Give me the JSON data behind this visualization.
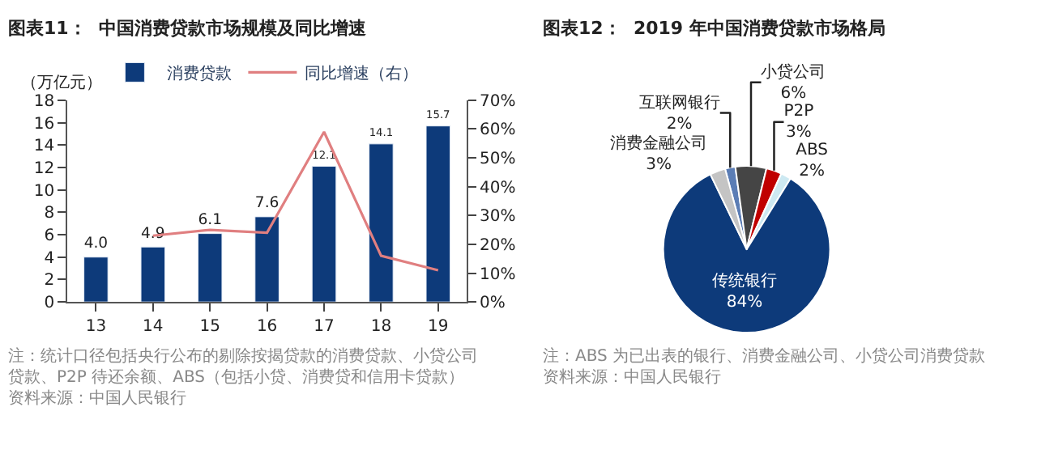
{
  "chart_data": [
    {
      "type": "bar",
      "title": "图表11：  中国消费贷款市场规模及同比增速",
      "ylabel": "（万亿元）",
      "categories": [
        "13",
        "14",
        "15",
        "16",
        "17",
        "18",
        "19"
      ],
      "series": [
        {
          "name": "消费贷款",
          "type": "bar",
          "color": "#0d3a7a",
          "values": [
            4.0,
            4.9,
            6.1,
            7.6,
            12.1,
            14.1,
            15.7
          ],
          "value_labels": [
            "4.0",
            "4.9",
            "6.1",
            "7.6",
            "12.1",
            "14.1",
            "15.7"
          ]
        },
        {
          "name": "同比增速（右）",
          "type": "line",
          "axis": "y2",
          "color": "#e07f80",
          "values": [
            null,
            23,
            25,
            24,
            59,
            16,
            11
          ]
        }
      ],
      "ylim": [
        0,
        18
      ],
      "yticks": [
        0,
        2,
        4,
        6,
        8,
        10,
        12,
        14,
        16,
        18
      ],
      "y2lim": [
        0,
        70
      ],
      "y2ticks": [
        {
          "value": 0,
          "label": "0%"
        },
        {
          "value": 10,
          "label": "10%"
        },
        {
          "value": 20,
          "label": "20%"
        },
        {
          "value": 30,
          "label": "30%"
        },
        {
          "value": 40,
          "label": "40%"
        },
        {
          "value": 50,
          "label": "50%"
        },
        {
          "value": 60,
          "label": "60%"
        },
        {
          "value": 70,
          "label": "70%"
        }
      ],
      "legend": "top",
      "marker": "none",
      "line_style": "solid",
      "annotations": [
        "注：统计口径包括央行公布的剔除按揭贷款的消费贷款、小贷公司贷款、P2P 待还余额、ABS（包括小贷、消费贷和信用卡贷款）",
        "资料来源：中国人民银行"
      ]
    },
    {
      "type": "pie",
      "title": "图表12：  2019 年中国消费贷款市场格局",
      "categories": [
        "互联网银行",
        "小贷公司",
        "P2P",
        "ABS",
        "传统银行",
        "消费金融公司"
      ],
      "values": [
        2,
        6,
        3,
        2,
        84,
        3
      ],
      "value_labels": [
        "2%",
        "6%",
        "3%",
        "2%",
        "84%",
        "3%"
      ],
      "colors": [
        "#5b7db5",
        "#454545",
        "#c00000",
        "#cde9f2",
        "#0d3a7a",
        "#c4c4c4"
      ],
      "legend": false,
      "annotations": [
        "注：ABS 为已出表的银行、消费金融公司、小贷公司消费贷款",
        "资料来源：中国人民银行"
      ]
    }
  ]
}
